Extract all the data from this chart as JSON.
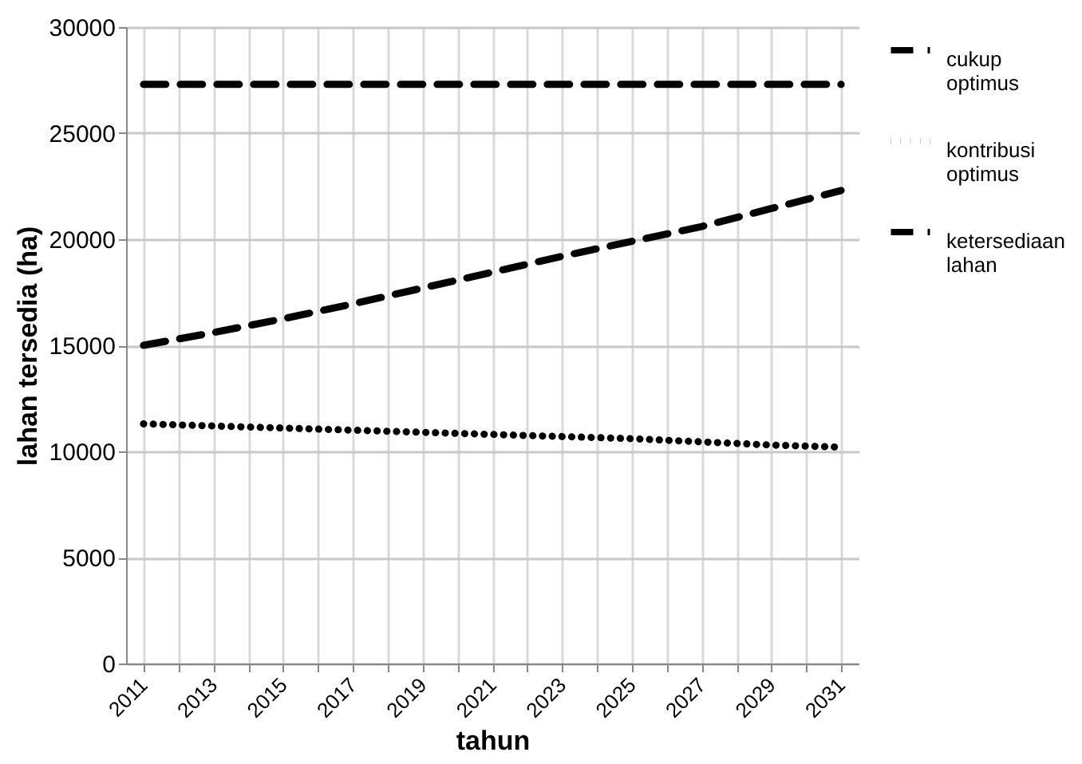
{
  "chart_data": {
    "type": "line",
    "xlabel": "tahun",
    "ylabel": "lahan tersedia (ha)",
    "x": [
      2011,
      2013,
      2015,
      2017,
      2019,
      2021,
      2023,
      2025,
      2027,
      2029,
      2031
    ],
    "series": [
      {
        "name": "cukup optimus",
        "color": "#000000",
        "line_style": "dashed",
        "values": [
          15000,
          15600,
          16250,
          16950,
          17700,
          18450,
          19200,
          19900,
          20600,
          21450,
          22300
        ]
      },
      {
        "name": "kontribusi optimus",
        "color": "#000000",
        "line_style": "dotted",
        "values": [
          11300,
          11200,
          11100,
          11000,
          10900,
          10800,
          10700,
          10600,
          10450,
          10300,
          10200
        ]
      },
      {
        "name": "ketersediaan lahan",
        "color": "#000000",
        "line_style": "dashed",
        "values": [
          27300,
          27300,
          27300,
          27300,
          27300,
          27300,
          27300,
          27300,
          27300,
          27300,
          27300
        ]
      }
    ],
    "xlim": [
      2010.5,
      2031.5
    ],
    "xticks": [
      2011,
      {
        "value": 2012,
        "label": null
      },
      2013,
      {
        "value": 2014,
        "label": null
      },
      2015,
      {
        "value": 2016,
        "label": null
      },
      2017,
      {
        "value": 2018,
        "label": null
      },
      2019,
      {
        "value": 2020,
        "label": null
      },
      2021,
      {
        "value": 2022,
        "label": null
      },
      2023,
      {
        "value": 2024,
        "label": null
      },
      2025,
      {
        "value": 2026,
        "label": null
      },
      2027,
      {
        "value": 2028,
        "label": null
      },
      2029,
      {
        "value": 2030,
        "label": null
      },
      2031
    ],
    "ylim": [
      0,
      30000
    ],
    "yticks": [
      0,
      5000,
      10000,
      15000,
      20000,
      25000,
      30000
    ],
    "grid": true,
    "legend": "right"
  }
}
